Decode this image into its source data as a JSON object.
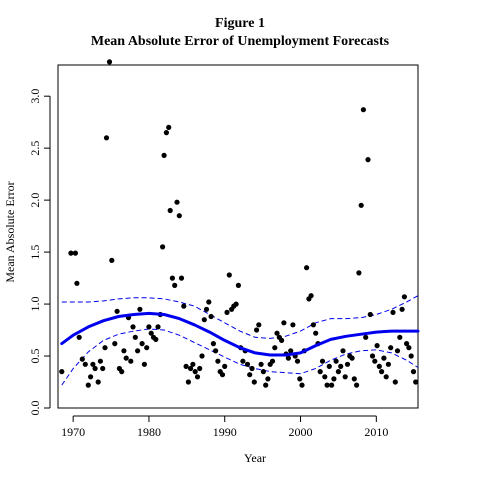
{
  "chart_data": {
    "type": "scatter",
    "title": "Figure 1",
    "subtitle": "Mean Absolute Error of Unemployment Forecasts",
    "xlabel": "Year",
    "ylabel": "Mean Absolute Error",
    "xlim": [
      1968,
      2015.5
    ],
    "ylim": [
      0,
      3.3
    ],
    "x_ticks": [
      1970,
      1980,
      1990,
      2000,
      2010
    ],
    "y_ticks": [
      0.0,
      0.5,
      1.0,
      1.5,
      2.0,
      2.5,
      3.0
    ],
    "x_tick_labels": [
      "1970",
      "1980",
      "1990",
      "2000",
      "2010"
    ],
    "y_tick_labels": [
      "0.0",
      "0.5",
      "1.0",
      "1.5",
      "2.0",
      "2.5",
      "3.0"
    ],
    "grid": false,
    "colors": {
      "points": "#000000",
      "smooth": "#0000ee",
      "band": "#0000ee",
      "axes": "#000000"
    },
    "points": [
      [
        1968.5,
        0.35
      ],
      [
        1969.7,
        1.49
      ],
      [
        1970.3,
        1.49
      ],
      [
        1970.5,
        1.2
      ],
      [
        1970.8,
        0.68
      ],
      [
        1971.2,
        0.47
      ],
      [
        1971.6,
        0.42
      ],
      [
        1972.0,
        0.22
      ],
      [
        1972.3,
        0.3
      ],
      [
        1972.6,
        0.42
      ],
      [
        1972.9,
        0.38
      ],
      [
        1973.3,
        0.25
      ],
      [
        1973.6,
        0.45
      ],
      [
        1973.9,
        0.38
      ],
      [
        1974.2,
        0.58
      ],
      [
        1974.4,
        2.6
      ],
      [
        1974.8,
        3.33
      ],
      [
        1975.1,
        1.42
      ],
      [
        1975.5,
        0.62
      ],
      [
        1975.8,
        0.93
      ],
      [
        1976.1,
        0.38
      ],
      [
        1976.4,
        0.35
      ],
      [
        1976.7,
        0.55
      ],
      [
        1977.0,
        0.48
      ],
      [
        1977.3,
        0.87
      ],
      [
        1977.6,
        0.45
      ],
      [
        1977.9,
        0.78
      ],
      [
        1978.2,
        0.68
      ],
      [
        1978.5,
        0.55
      ],
      [
        1978.8,
        0.95
      ],
      [
        1979.1,
        0.62
      ],
      [
        1979.4,
        0.42
      ],
      [
        1979.7,
        0.58
      ],
      [
        1980.0,
        0.78
      ],
      [
        1980.3,
        0.72
      ],
      [
        1980.6,
        0.68
      ],
      [
        1980.9,
        0.66
      ],
      [
        1981.2,
        0.78
      ],
      [
        1981.5,
        0.9
      ],
      [
        1981.8,
        1.55
      ],
      [
        1982.0,
        2.43
      ],
      [
        1982.3,
        2.65
      ],
      [
        1982.6,
        2.7
      ],
      [
        1982.8,
        1.9
      ],
      [
        1983.1,
        1.25
      ],
      [
        1983.4,
        1.18
      ],
      [
        1983.7,
        1.98
      ],
      [
        1984.0,
        1.85
      ],
      [
        1984.3,
        1.25
      ],
      [
        1984.6,
        0.98
      ],
      [
        1984.9,
        0.4
      ],
      [
        1985.2,
        0.25
      ],
      [
        1985.5,
        0.38
      ],
      [
        1985.8,
        0.42
      ],
      [
        1986.1,
        0.35
      ],
      [
        1986.4,
        0.3
      ],
      [
        1986.7,
        0.38
      ],
      [
        1987.0,
        0.5
      ],
      [
        1987.3,
        0.85
      ],
      [
        1987.6,
        0.95
      ],
      [
        1987.9,
        1.02
      ],
      [
        1988.2,
        0.88
      ],
      [
        1988.5,
        0.62
      ],
      [
        1988.8,
        0.55
      ],
      [
        1989.1,
        0.45
      ],
      [
        1989.4,
        0.35
      ],
      [
        1989.7,
        0.32
      ],
      [
        1990.0,
        0.4
      ],
      [
        1990.3,
        0.92
      ],
      [
        1990.6,
        1.28
      ],
      [
        1990.9,
        0.95
      ],
      [
        1991.2,
        0.98
      ],
      [
        1991.5,
        1.0
      ],
      [
        1991.8,
        1.18
      ],
      [
        1992.1,
        0.58
      ],
      [
        1992.4,
        0.45
      ],
      [
        1992.7,
        0.55
      ],
      [
        1993.0,
        0.42
      ],
      [
        1993.3,
        0.32
      ],
      [
        1993.6,
        0.38
      ],
      [
        1993.9,
        0.25
      ],
      [
        1994.2,
        0.75
      ],
      [
        1994.5,
        0.8
      ],
      [
        1994.8,
        0.42
      ],
      [
        1995.1,
        0.35
      ],
      [
        1995.4,
        0.22
      ],
      [
        1995.7,
        0.28
      ],
      [
        1996.0,
        0.42
      ],
      [
        1996.3,
        0.45
      ],
      [
        1996.6,
        0.58
      ],
      [
        1996.9,
        0.72
      ],
      [
        1997.2,
        0.68
      ],
      [
        1997.5,
        0.65
      ],
      [
        1997.8,
        0.82
      ],
      [
        1998.1,
        0.52
      ],
      [
        1998.4,
        0.48
      ],
      [
        1998.7,
        0.55
      ],
      [
        1999.0,
        0.8
      ],
      [
        1999.3,
        0.5
      ],
      [
        1999.6,
        0.45
      ],
      [
        1999.9,
        0.28
      ],
      [
        2000.2,
        0.22
      ],
      [
        2000.5,
        0.55
      ],
      [
        2000.8,
        1.35
      ],
      [
        2001.1,
        1.05
      ],
      [
        2001.4,
        1.08
      ],
      [
        2001.7,
        0.8
      ],
      [
        2002.0,
        0.72
      ],
      [
        2002.3,
        0.62
      ],
      [
        2002.6,
        0.35
      ],
      [
        2002.9,
        0.45
      ],
      [
        2003.2,
        0.3
      ],
      [
        2003.5,
        0.22
      ],
      [
        2003.8,
        0.4
      ],
      [
        2004.1,
        0.22
      ],
      [
        2004.4,
        0.28
      ],
      [
        2004.7,
        0.45
      ],
      [
        2005.0,
        0.35
      ],
      [
        2005.3,
        0.4
      ],
      [
        2005.6,
        0.55
      ],
      [
        2005.9,
        0.3
      ],
      [
        2006.2,
        0.42
      ],
      [
        2006.5,
        0.5
      ],
      [
        2006.8,
        0.48
      ],
      [
        2007.1,
        0.28
      ],
      [
        2007.4,
        0.22
      ],
      [
        2007.7,
        1.3
      ],
      [
        2008.0,
        1.95
      ],
      [
        2008.3,
        2.87
      ],
      [
        2008.6,
        0.68
      ],
      [
        2008.9,
        2.39
      ],
      [
        2009.2,
        0.9
      ],
      [
        2009.5,
        0.5
      ],
      [
        2009.8,
        0.45
      ],
      [
        2010.1,
        0.6
      ],
      [
        2010.4,
        0.4
      ],
      [
        2010.7,
        0.35
      ],
      [
        2011.0,
        0.48
      ],
      [
        2011.3,
        0.3
      ],
      [
        2011.6,
        0.42
      ],
      [
        2011.9,
        0.58
      ],
      [
        2012.2,
        0.92
      ],
      [
        2012.5,
        0.25
      ],
      [
        2012.8,
        0.55
      ],
      [
        2013.1,
        0.68
      ],
      [
        2013.4,
        0.95
      ],
      [
        2013.7,
        1.07
      ],
      [
        2014.0,
        0.62
      ],
      [
        2014.3,
        0.58
      ],
      [
        2014.6,
        0.5
      ],
      [
        2014.9,
        0.35
      ],
      [
        2015.2,
        0.25
      ]
    ],
    "smooth_curve": [
      [
        1968.5,
        0.62
      ],
      [
        1970,
        0.7
      ],
      [
        1972,
        0.78
      ],
      [
        1974,
        0.84
      ],
      [
        1976,
        0.88
      ],
      [
        1978,
        0.9
      ],
      [
        1980,
        0.91
      ],
      [
        1982,
        0.9
      ],
      [
        1984,
        0.86
      ],
      [
        1986,
        0.8
      ],
      [
        1988,
        0.73
      ],
      [
        1990,
        0.65
      ],
      [
        1992,
        0.58
      ],
      [
        1994,
        0.53
      ],
      [
        1996,
        0.51
      ],
      [
        1998,
        0.51
      ],
      [
        2000,
        0.53
      ],
      [
        2002,
        0.6
      ],
      [
        2004,
        0.66
      ],
      [
        2006,
        0.69
      ],
      [
        2008,
        0.71
      ],
      [
        2010,
        0.73
      ],
      [
        2012,
        0.74
      ],
      [
        2014,
        0.74
      ],
      [
        2015.5,
        0.74
      ]
    ],
    "upper_band": [
      [
        1968.5,
        1.02
      ],
      [
        1970,
        1.02
      ],
      [
        1972,
        1.02
      ],
      [
        1974,
        1.03
      ],
      [
        1976,
        1.05
      ],
      [
        1978,
        1.06
      ],
      [
        1980,
        1.06
      ],
      [
        1982,
        1.05
      ],
      [
        1984,
        1.02
      ],
      [
        1986,
        0.98
      ],
      [
        1988,
        0.9
      ],
      [
        1990,
        0.82
      ],
      [
        1992,
        0.74
      ],
      [
        1994,
        0.68
      ],
      [
        1996,
        0.67
      ],
      [
        1998,
        0.69
      ],
      [
        2000,
        0.74
      ],
      [
        2002,
        0.82
      ],
      [
        2004,
        0.86
      ],
      [
        2006,
        0.86
      ],
      [
        2008,
        0.87
      ],
      [
        2010,
        0.9
      ],
      [
        2012,
        0.95
      ],
      [
        2014,
        1.02
      ],
      [
        2015.5,
        1.08
      ]
    ],
    "lower_band": [
      [
        1968.5,
        0.22
      ],
      [
        1970,
        0.38
      ],
      [
        1972,
        0.54
      ],
      [
        1974,
        0.65
      ],
      [
        1976,
        0.71
      ],
      [
        1978,
        0.74
      ],
      [
        1980,
        0.76
      ],
      [
        1982,
        0.75
      ],
      [
        1984,
        0.7
      ],
      [
        1986,
        0.63
      ],
      [
        1988,
        0.56
      ],
      [
        1990,
        0.49
      ],
      [
        1992,
        0.42
      ],
      [
        1994,
        0.38
      ],
      [
        1996,
        0.35
      ],
      [
        1998,
        0.34
      ],
      [
        2000,
        0.33
      ],
      [
        2002,
        0.38
      ],
      [
        2004,
        0.46
      ],
      [
        2006,
        0.52
      ],
      [
        2008,
        0.55
      ],
      [
        2010,
        0.56
      ],
      [
        2012,
        0.53
      ],
      [
        2014,
        0.46
      ],
      [
        2015.5,
        0.39
      ]
    ]
  }
}
